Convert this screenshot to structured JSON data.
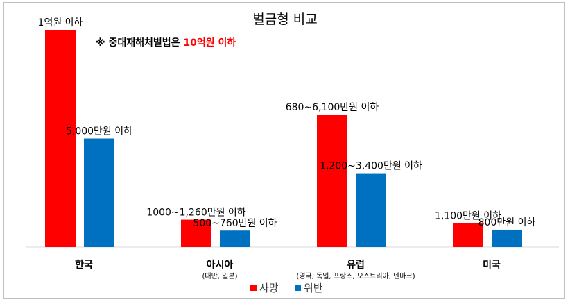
{
  "chart_data": {
    "type": "bar",
    "title": "벌금형 비교",
    "note": {
      "prefix": "※ 중대재해처벌법은 ",
      "highlight": "10억원 이하"
    },
    "categories": [
      "한국",
      "아시아",
      "유럽",
      "미국"
    ],
    "category_subtitles": [
      "",
      "(대만, 일본)",
      "(영국, 독일, 프랑스, 오스트리아, 덴마크)",
      ""
    ],
    "value_unit": "만원",
    "series": [
      {
        "name": "사망",
        "color": "#ff0000",
        "values": [
          10000,
          1260,
          6100,
          1100
        ],
        "labels": [
          "1억원 이하",
          "1000~1,260만원 이하",
          "680~6,100만원 이하",
          "1,100만원 이하"
        ]
      },
      {
        "name": "위반",
        "color": "#0070c0",
        "values": [
          5000,
          760,
          3400,
          800
        ],
        "labels": [
          "5,000만원 이하",
          "500~760만원 이하",
          "1,200~3,400만원 이하",
          "800만원 이하"
        ]
      }
    ],
    "ylim": [
      0,
      10000
    ],
    "grid": false,
    "legend_position": "bottom"
  }
}
